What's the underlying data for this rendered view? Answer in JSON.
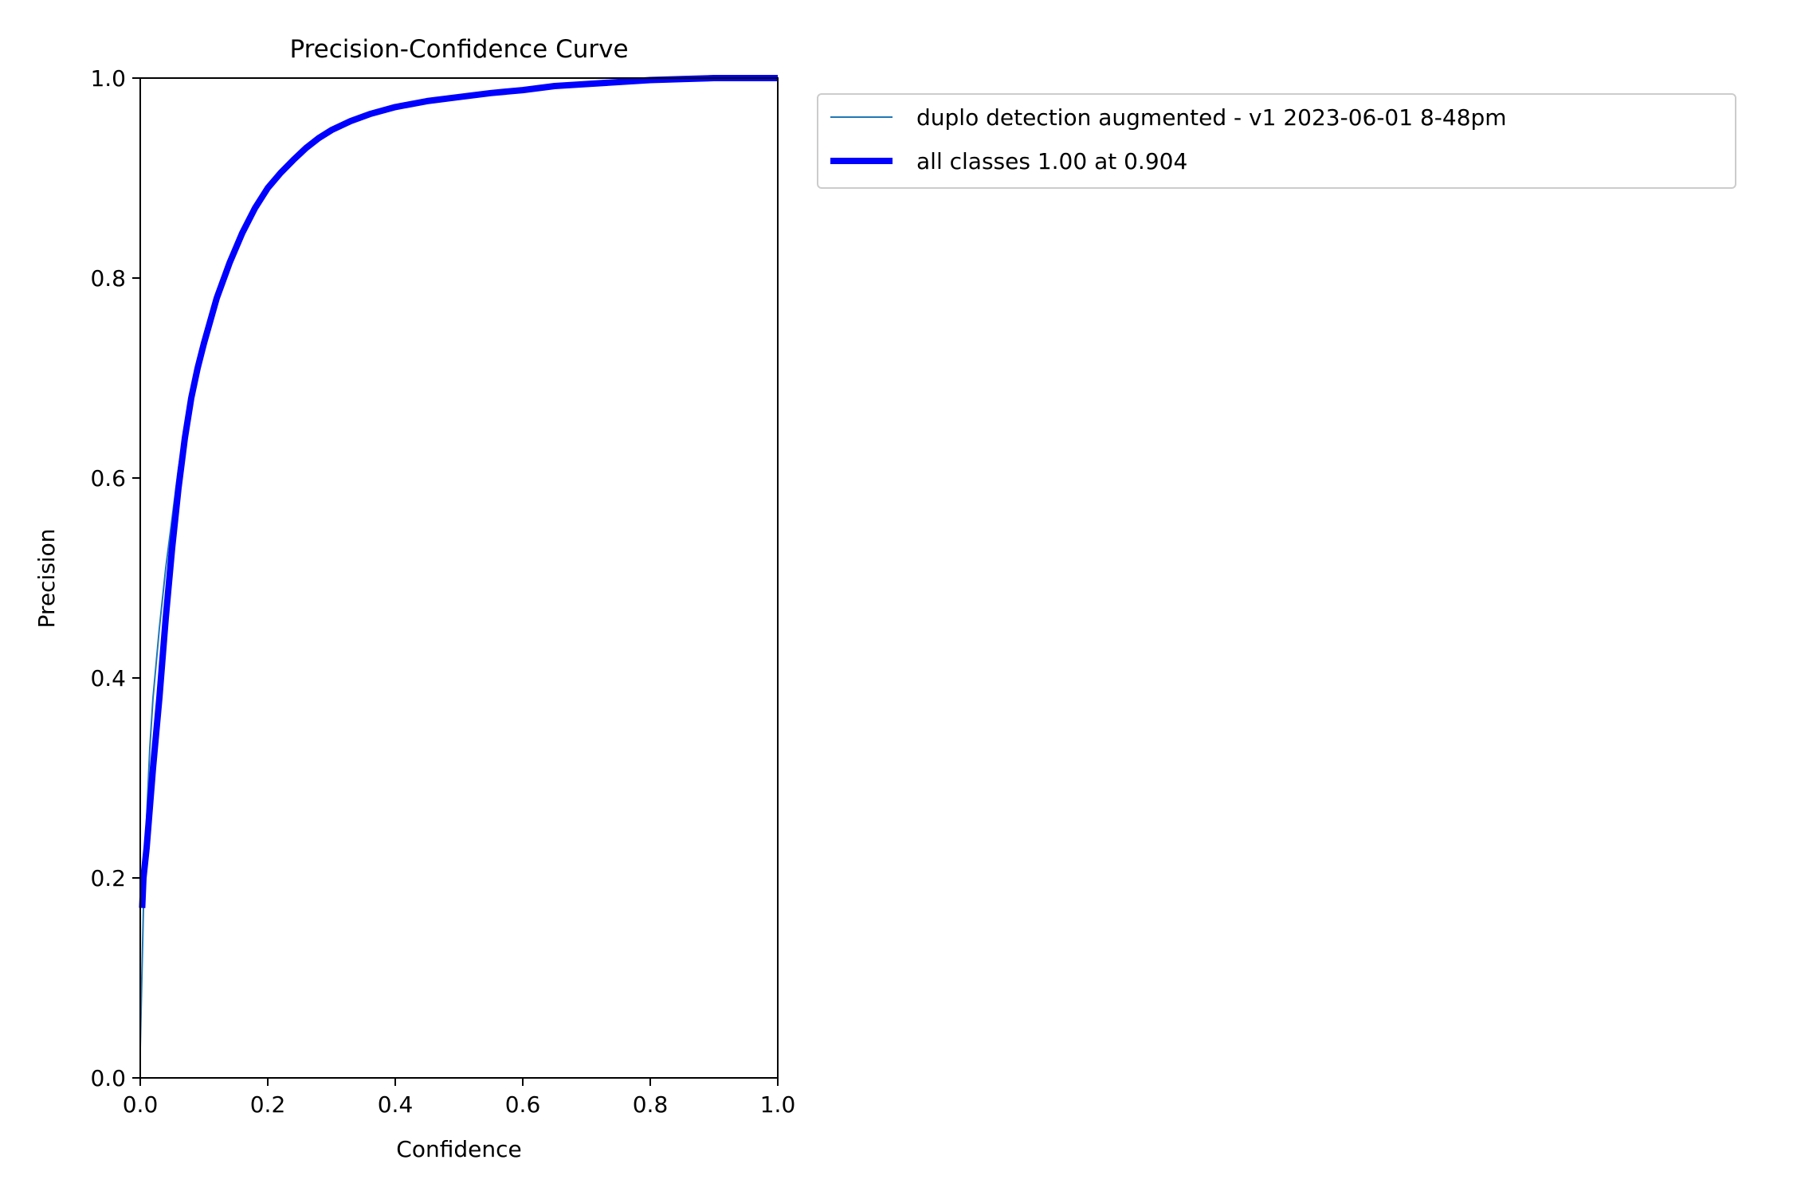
{
  "chart_data": {
    "type": "line",
    "title": "Precision-Confidence Curve",
    "xlabel": "Confidence",
    "ylabel": "Precision",
    "xlim": [
      0,
      1
    ],
    "ylim": [
      0,
      1
    ],
    "xticks": [
      "0.0",
      "0.2",
      "0.4",
      "0.6",
      "0.8",
      "1.0"
    ],
    "yticks": [
      "0.0",
      "0.2",
      "0.4",
      "0.6",
      "0.8",
      "1.0"
    ],
    "grid": false,
    "legend_position": "outside-top-right",
    "series": [
      {
        "name": "duplo detection augmented - v1 2023-06-01 8-48pm",
        "color": "#1f77b4",
        "style": "thin",
        "x": [
          0.0,
          0.005,
          0.01,
          0.015,
          0.02,
          0.03,
          0.04,
          0.05,
          0.06,
          0.07,
          0.08,
          0.09,
          0.1,
          0.12,
          0.14,
          0.16,
          0.18,
          0.2,
          0.22,
          0.24,
          0.26,
          0.28,
          0.3,
          0.33,
          0.36,
          0.4,
          0.45,
          0.5,
          0.55,
          0.6,
          0.65,
          0.7,
          0.75,
          0.8,
          0.85,
          0.9,
          0.95,
          1.0
        ],
        "y": [
          0.03,
          0.17,
          0.26,
          0.33,
          0.38,
          0.45,
          0.51,
          0.56,
          0.61,
          0.65,
          0.68,
          0.71,
          0.735,
          0.78,
          0.815,
          0.845,
          0.87,
          0.89,
          0.905,
          0.918,
          0.93,
          0.94,
          0.948,
          0.957,
          0.964,
          0.971,
          0.977,
          0.981,
          0.985,
          0.988,
          0.992,
          0.994,
          0.996,
          0.998,
          0.999,
          1.0,
          1.0,
          1.0
        ]
      },
      {
        "name": "all classes 1.00 at 0.904",
        "color": "#0000ff",
        "style": "thick",
        "x": [
          0.003,
          0.005,
          0.01,
          0.015,
          0.02,
          0.03,
          0.04,
          0.05,
          0.06,
          0.07,
          0.08,
          0.09,
          0.1,
          0.12,
          0.14,
          0.16,
          0.18,
          0.2,
          0.22,
          0.24,
          0.26,
          0.28,
          0.3,
          0.33,
          0.36,
          0.4,
          0.45,
          0.5,
          0.55,
          0.6,
          0.65,
          0.7,
          0.75,
          0.8,
          0.85,
          0.9,
          0.95,
          1.0
        ],
        "y": [
          0.17,
          0.2,
          0.23,
          0.27,
          0.31,
          0.38,
          0.46,
          0.53,
          0.59,
          0.64,
          0.68,
          0.71,
          0.735,
          0.78,
          0.815,
          0.845,
          0.87,
          0.89,
          0.905,
          0.918,
          0.93,
          0.94,
          0.948,
          0.957,
          0.964,
          0.971,
          0.977,
          0.981,
          0.985,
          0.988,
          0.992,
          0.994,
          0.996,
          0.998,
          0.999,
          1.0,
          1.0,
          1.0
        ]
      }
    ]
  }
}
